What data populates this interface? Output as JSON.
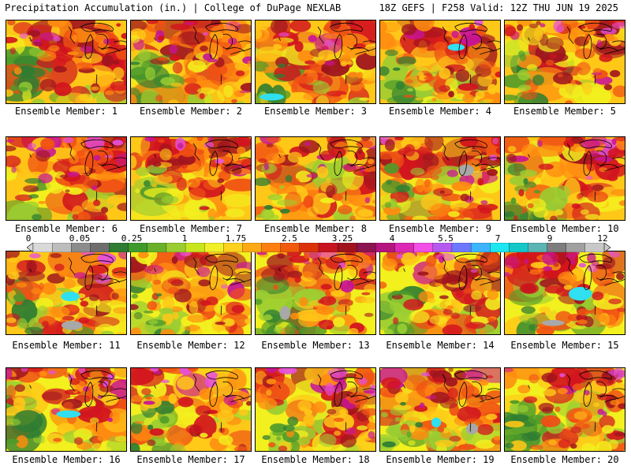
{
  "header": {
    "left_title": "Precipitation Accumulation (in.) | College of DuPage NEXLAB",
    "right_title": "18Z GEFS | F258 Valid: 12Z THU JUN 19 2025"
  },
  "members": [
    "Ensemble Member: 1",
    "Ensemble Member: 2",
    "Ensemble Member: 3",
    "Ensemble Member: 4",
    "Ensemble Member: 5",
    "Ensemble Member: 6",
    "Ensemble Member: 7",
    "Ensemble Member: 8",
    "Ensemble Member: 9",
    "Ensemble Member: 10",
    "Ensemble Member: 11",
    "Ensemble Member: 12",
    "Ensemble Member: 13",
    "Ensemble Member: 14",
    "Ensemble Member: 15",
    "Ensemble Member: 16",
    "Ensemble Member: 17",
    "Ensemble Member: 18",
    "Ensemble Member: 19",
    "Ensemble Member: 20"
  ],
  "colorbar": {
    "tick_labels": [
      "0",
      "0.05",
      "0.25",
      "1",
      "1.75",
      "2.5",
      "3.25",
      "4",
      "5.5",
      "7",
      "9",
      "12"
    ],
    "colors": [
      "#d9d9d9",
      "#bdbdbd",
      "#8c8c8c",
      "#6e6e6e",
      "#2e7d32",
      "#3f9a2e",
      "#6ab02a",
      "#9acd32",
      "#c8e61e",
      "#f0f028",
      "#ffd21e",
      "#ffaa14",
      "#ff8010",
      "#f05a0a",
      "#dc320a",
      "#c8141e",
      "#a0141e",
      "#8c1450",
      "#b4147d",
      "#dc28b4",
      "#f050e6",
      "#b45af0",
      "#6e78ff",
      "#3cb4ff",
      "#1ee6f0",
      "#14c8c8",
      "#5ab4b4",
      "#7d7d7d",
      "#a0a0a0",
      "#c8c8c8"
    ]
  },
  "palette": {
    "gray": "#a8a8a8",
    "dark_green": "#2f7d32",
    "green": "#4e9a2a",
    "light_green": "#9acd32",
    "yellow": "#f2f01e",
    "gold": "#ffc818",
    "orange": "#ff8c10",
    "red_orange": "#f05014",
    "red": "#d2141e",
    "dark_red": "#a0141e",
    "magenta": "#c81496",
    "pink": "#e650dc",
    "cyan": "#30e0f0"
  }
}
